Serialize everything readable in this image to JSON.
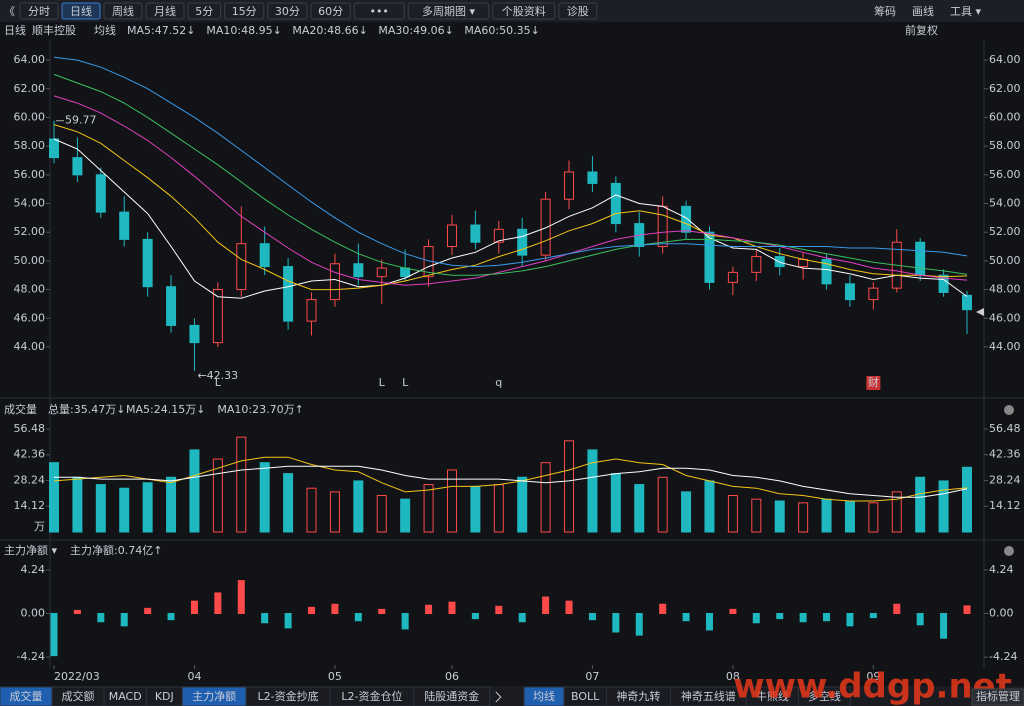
{
  "toolbar": {
    "back": "《",
    "tabs": [
      "分时",
      "日线",
      "周线",
      "月线",
      "5分",
      "15分",
      "30分",
      "60分",
      "•••",
      "多周期图 ▾",
      "个股资料",
      "诊股"
    ],
    "right": [
      "筹码",
      "画线",
      "工具 ▾"
    ]
  },
  "info": {
    "period": "日线",
    "stock": "顺丰控股",
    "ma_title": "均线",
    "adjust": "前复权"
  },
  "chart_data": [
    {
      "type": "candlestick",
      "up_color": "#ff4a4a",
      "down_color": "#1fb8c0",
      "ohlc": [
        [
          58.5,
          59.77,
          56.8,
          57.2
        ],
        [
          57.2,
          58.6,
          55.5,
          56.0
        ],
        [
          56.0,
          56.5,
          53.0,
          53.4
        ],
        [
          53.4,
          54.5,
          51.0,
          51.5
        ],
        [
          51.5,
          52.0,
          47.5,
          48.2
        ],
        [
          48.2,
          49.0,
          45.0,
          45.5
        ],
        [
          45.5,
          46.0,
          42.33,
          44.3
        ],
        [
          44.3,
          48.5,
          44.0,
          48.0
        ],
        [
          48.0,
          53.8,
          47.5,
          51.2
        ],
        [
          51.2,
          52.4,
          49.0,
          49.6
        ],
        [
          49.6,
          50.2,
          45.2,
          45.8
        ],
        [
          45.8,
          47.8,
          44.8,
          47.3
        ],
        [
          47.3,
          50.5,
          46.8,
          49.8
        ],
        [
          49.8,
          51.2,
          48.3,
          48.9
        ],
        [
          48.9,
          50.1,
          47.0,
          49.5
        ],
        [
          49.5,
          50.8,
          48.6,
          48.9
        ],
        [
          48.9,
          51.5,
          48.2,
          51.0
        ],
        [
          51.0,
          53.2,
          50.4,
          52.5
        ],
        [
          52.5,
          53.5,
          50.8,
          51.3
        ],
        [
          51.3,
          52.8,
          50.5,
          52.2
        ],
        [
          52.2,
          53.0,
          49.6,
          50.4
        ],
        [
          50.4,
          54.8,
          50.0,
          54.3
        ],
        [
          54.3,
          57.0,
          53.6,
          56.2
        ],
        [
          56.2,
          57.3,
          54.8,
          55.4
        ],
        [
          55.4,
          55.9,
          52.0,
          52.6
        ],
        [
          52.6,
          53.4,
          50.3,
          51.0
        ],
        [
          51.0,
          54.5,
          50.5,
          53.8
        ],
        [
          53.8,
          54.2,
          51.5,
          52.0
        ],
        [
          52.0,
          52.4,
          48.0,
          48.5
        ],
        [
          48.5,
          49.6,
          47.6,
          49.2
        ],
        [
          49.2,
          50.8,
          48.6,
          50.3
        ],
        [
          50.3,
          50.9,
          49.0,
          49.6
        ],
        [
          49.6,
          50.6,
          48.7,
          50.1
        ],
        [
          50.1,
          50.5,
          48.0,
          48.4
        ],
        [
          48.4,
          49.0,
          46.8,
          47.3
        ],
        [
          47.3,
          48.5,
          46.6,
          48.1
        ],
        [
          48.1,
          52.2,
          47.8,
          51.3
        ],
        [
          51.3,
          51.6,
          48.6,
          49.0
        ],
        [
          49.0,
          49.4,
          47.5,
          47.8
        ],
        [
          47.6,
          47.9,
          44.9,
          46.6
        ]
      ],
      "series": [
        {
          "name": "MA5:47.52↓",
          "color": "#ffffff",
          "values": [
            58.5,
            57.8,
            56.3,
            54.8,
            53.3,
            51.0,
            48.6,
            47.5,
            47.4,
            47.9,
            48.2,
            48.6,
            48.7,
            48.2,
            48.3,
            48.8,
            49.6,
            50.2,
            50.6,
            51.4,
            51.7,
            52.3,
            53.1,
            53.7,
            54.6,
            54.0,
            53.8,
            53.0,
            51.6,
            50.9,
            50.8,
            49.9,
            49.5,
            49.4,
            49.1,
            48.7,
            49.0,
            48.8,
            48.7,
            47.52
          ]
        },
        {
          "name": "MA10:48.95↓",
          "color": "#f5c518",
          "values": [
            59.5,
            59.0,
            58.2,
            57.0,
            55.8,
            54.5,
            53.0,
            51.3,
            50.1,
            49.4,
            48.6,
            48.0,
            48.0,
            48.1,
            48.3,
            48.6,
            49.0,
            49.4,
            49.7,
            50.3,
            50.8,
            51.4,
            52.1,
            52.6,
            53.3,
            53.5,
            53.2,
            52.6,
            51.8,
            51.6,
            51.0,
            50.5,
            50.1,
            49.8,
            49.4,
            49.1,
            49.0,
            49.0,
            48.9,
            48.95
          ]
        },
        {
          "name": "MA20:48.66↓",
          "color": "#e040c0",
          "values": [
            61.5,
            61.0,
            60.3,
            59.4,
            58.4,
            57.2,
            55.9,
            54.5,
            53.1,
            52.0,
            50.9,
            49.9,
            49.2,
            48.7,
            48.5,
            48.3,
            48.4,
            48.6,
            48.8,
            49.2,
            49.6,
            50.0,
            50.5,
            51.0,
            51.5,
            51.8,
            52.0,
            52.1,
            51.9,
            51.6,
            51.3,
            51.0,
            50.6,
            50.2,
            49.9,
            49.5,
            49.3,
            49.0,
            48.8,
            48.66
          ]
        },
        {
          "name": "MA30:49.06↓",
          "color": "#3cc060",
          "values": [
            63.0,
            62.4,
            61.8,
            61.0,
            60.0,
            58.9,
            57.8,
            56.7,
            55.5,
            54.3,
            53.2,
            52.2,
            51.3,
            50.5,
            49.9,
            49.5,
            49.2,
            49.0,
            49.0,
            49.1,
            49.3,
            49.6,
            50.0,
            50.4,
            50.8,
            51.1,
            51.3,
            51.5,
            51.5,
            51.4,
            51.3,
            51.1,
            50.8,
            50.5,
            50.2,
            49.9,
            49.7,
            49.5,
            49.3,
            49.06
          ]
        },
        {
          "name": "MA60:50.35↓",
          "color": "#3a9ae8",
          "values": [
            64.2,
            64.0,
            63.5,
            62.8,
            62.0,
            61.0,
            60.0,
            58.9,
            57.7,
            56.5,
            55.3,
            54.1,
            53.0,
            52.0,
            51.2,
            50.5,
            50.0,
            49.7,
            49.6,
            49.7,
            49.9,
            50.2,
            50.5,
            50.8,
            51.0,
            51.1,
            51.2,
            51.2,
            51.1,
            51.0,
            51.0,
            51.0,
            51.0,
            51.0,
            50.9,
            50.9,
            50.8,
            50.7,
            50.6,
            50.35
          ]
        }
      ],
      "ylim": [
        40.65,
        65.05
      ],
      "yticks": [
        {
          "value": 44,
          "label": "44.00"
        },
        {
          "value": 46,
          "label": "46.00"
        },
        {
          "value": 48,
          "label": "48.00"
        },
        {
          "value": 50,
          "label": "50.00"
        },
        {
          "value": 52,
          "label": "52.00"
        },
        {
          "value": 54,
          "label": "54.00"
        },
        {
          "value": 56,
          "label": "56.00"
        },
        {
          "value": 58,
          "label": "58.00"
        },
        {
          "value": 60,
          "label": "60.00"
        },
        {
          "value": 62,
          "label": "62.00"
        },
        {
          "value": 64,
          "label": "64.00"
        }
      ],
      "max_label": "59.77",
      "min_label": "←42.33",
      "events": [
        null,
        null,
        null,
        null,
        null,
        null,
        null,
        {
          "text": "L",
          "color": "#ff4a4a"
        },
        null,
        null,
        null,
        null,
        null,
        null,
        {
          "text": "L",
          "color": "#1fb8c0"
        },
        {
          "text": "L",
          "color": "#ff4a4a"
        },
        null,
        null,
        null,
        {
          "text": "q",
          "color": "#ff4a4a"
        },
        null,
        null,
        null,
        null,
        null,
        null,
        null,
        null,
        null,
        null,
        null,
        null,
        null,
        null,
        null,
        {
          "text": "财",
          "color": "#ffffff",
          "box": "#c83232"
        },
        null,
        null,
        null,
        null
      ]
    },
    {
      "type": "bar",
      "title": "成交量",
      "summary": "总量:35.47万↓",
      "summary_color": "#ff4a4a",
      "unit": "万",
      "values": [
        38,
        30,
        26,
        24,
        27,
        30,
        45,
        40,
        52,
        38,
        32,
        24,
        22,
        28,
        20,
        18,
        26,
        34,
        25,
        26,
        30,
        38,
        50,
        45,
        32,
        26,
        30,
        22,
        28,
        20,
        18,
        17,
        16,
        18,
        17,
        16,
        22,
        30,
        28,
        35.47
      ],
      "series": [
        {
          "name": "MA5:24.15万↓",
          "color": "#f5c518",
          "values": [
            28,
            29,
            30,
            31,
            29,
            27,
            31,
            35,
            39,
            41,
            41,
            37,
            34,
            33,
            27,
            22,
            23,
            25,
            25,
            26,
            28,
            31,
            34,
            38,
            40,
            38,
            37,
            31,
            28,
            25,
            24,
            21,
            20,
            18,
            17,
            17,
            18,
            21,
            23,
            24.15
          ]
        },
        {
          "name": "MA10:23.70万↑",
          "color": "#ffffff",
          "values": [
            30,
            30,
            29,
            29,
            29,
            28,
            30,
            32,
            34,
            35,
            36,
            36,
            36,
            36,
            34,
            31,
            29,
            29,
            29,
            29,
            28,
            27,
            28,
            30,
            32,
            33,
            35,
            35,
            34,
            31,
            30,
            28,
            25,
            23,
            21,
            20,
            19,
            19,
            21,
            23.7
          ]
        }
      ],
      "ylim": [
        0,
        61.4
      ],
      "yticks": [
        14.12,
        28.24,
        42.36,
        56.48
      ]
    },
    {
      "type": "bar",
      "title": "主力净额 ▾",
      "summary": "主力净额:0.74亿↑",
      "summary_color": "#ff4a4a",
      "up_color": "#ff4a4a",
      "down_color": "#1fb8c0",
      "values": [
        -4.1,
        0.3,
        -0.8,
        -1.2,
        0.5,
        -0.6,
        1.2,
        2.0,
        3.2,
        -0.9,
        -1.4,
        0.6,
        0.9,
        -0.7,
        0.4,
        -1.5,
        0.8,
        1.1,
        -0.5,
        0.7,
        -0.8,
        1.6,
        1.2,
        -0.6,
        -1.8,
        -2.1,
        0.9,
        -0.7,
        -1.6,
        0.4,
        -0.9,
        -0.5,
        -0.8,
        -0.7,
        -1.2,
        -0.4,
        0.9,
        -1.1,
        -2.4,
        0.74
      ],
      "categories": [
        "2022/03",
        null,
        null,
        null,
        null,
        null,
        "04",
        null,
        null,
        null,
        null,
        null,
        "05",
        null,
        null,
        null,
        null,
        "06",
        null,
        null,
        null,
        null,
        null,
        "07",
        null,
        null,
        null,
        null,
        null,
        "08",
        null,
        null,
        null,
        null,
        null,
        "09",
        null,
        null,
        null,
        null
      ],
      "ylim": [
        -5.01,
        5.01
      ],
      "yticks": [
        -4.24,
        {
          "value": 0,
          "label": "0.00"
        },
        4.24
      ]
    }
  ],
  "bottom_tabs": {
    "left": [
      "成交量",
      "成交额",
      "MACD",
      "KDJ",
      "主力净额",
      "L2-资金抄底",
      "L2-资金仓位",
      "陆股通资金"
    ],
    "right": [
      "均线",
      "BOLL",
      "神奇九转",
      "神奇五线谱",
      "牛熊线",
      "多空线"
    ],
    "manage": "指标管理"
  },
  "watermark": "www.ddgp.net"
}
